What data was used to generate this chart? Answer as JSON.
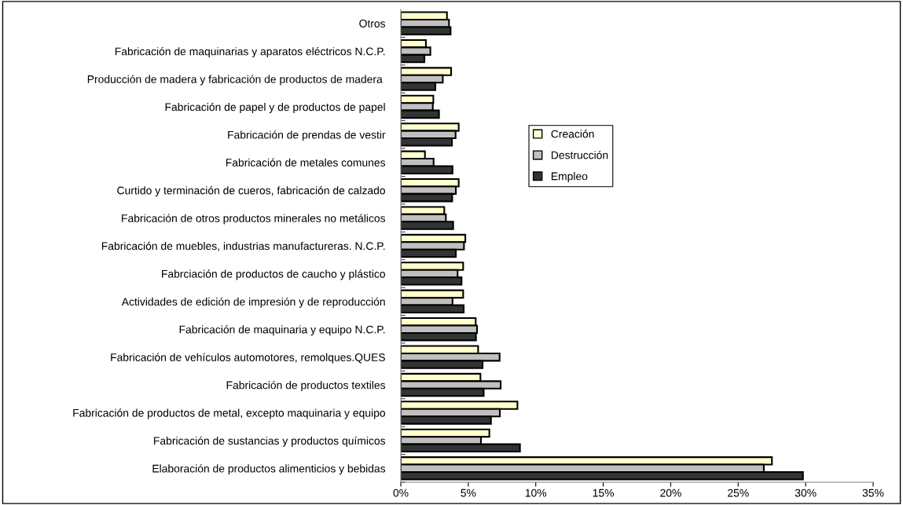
{
  "chart_data": {
    "type": "bar",
    "orientation": "horizontal",
    "categories": [
      "Otros",
      "Fabricación de maquinarias y aparatos eléctricos N.C.P.",
      "Producción de madera y fabricación de productos de madera ",
      "Fabricación de papel y de productos de papel",
      "Fabricación de prendas de vestir",
      "Fabricación de metales comunes",
      "Curtido y terminación de cueros, fabricación de calzado",
      "Fabricación de otros productos minerales no metálicos",
      "Fabricación de muebles, industrias manufactureras. N.C.P.",
      "Fabrciación de productos de caucho y plástico",
      "Actividades de edición de impresión y de reproducción",
      "Fabricación de maquinaria y equipo N.C.P.",
      "Fabricación de vehículos automotores, remolques.QUES",
      "Fabricación de productos textiles",
      "Fabricación de productos de metal, excepto maquinaria y equipo",
      "Fabricación de sustancias y productos químicos",
      "Elaboración de productos alimenticios y bebidas"
    ],
    "series": [
      {
        "name": "Creación",
        "color": "#ffffcc",
        "values": [
          3.42,
          1.86,
          3.73,
          2.41,
          4.29,
          1.79,
          4.29,
          3.22,
          4.78,
          4.62,
          4.62,
          5.55,
          5.73,
          5.9,
          8.64,
          6.56,
          27.5
        ]
      },
      {
        "name": "Destrucción",
        "color": "#c0c0c0",
        "values": [
          3.57,
          2.19,
          3.11,
          2.37,
          4.06,
          2.43,
          4.08,
          3.34,
          4.68,
          4.21,
          3.83,
          5.65,
          7.32,
          7.4,
          7.34,
          5.94,
          26.9
        ]
      },
      {
        "name": "Empleo",
        "color": "#333333",
        "values": [
          3.69,
          1.75,
          2.56,
          2.83,
          3.79,
          3.83,
          3.81,
          3.88,
          4.08,
          4.5,
          4.66,
          5.57,
          6.06,
          6.14,
          6.68,
          8.83,
          29.8
        ]
      }
    ],
    "xlim": [
      0,
      35
    ],
    "xticks": [
      {
        "value": 0,
        "label": "0%"
      },
      {
        "value": 5,
        "label": "5%"
      },
      {
        "value": 10,
        "label": "10%"
      },
      {
        "value": 15,
        "label": "15%"
      },
      {
        "value": 20,
        "label": "20%"
      },
      {
        "value": 25,
        "label": "25%"
      },
      {
        "value": 30,
        "label": "30%"
      },
      {
        "value": 35,
        "label": "35%"
      }
    ],
    "grid": false,
    "legend": "center"
  }
}
